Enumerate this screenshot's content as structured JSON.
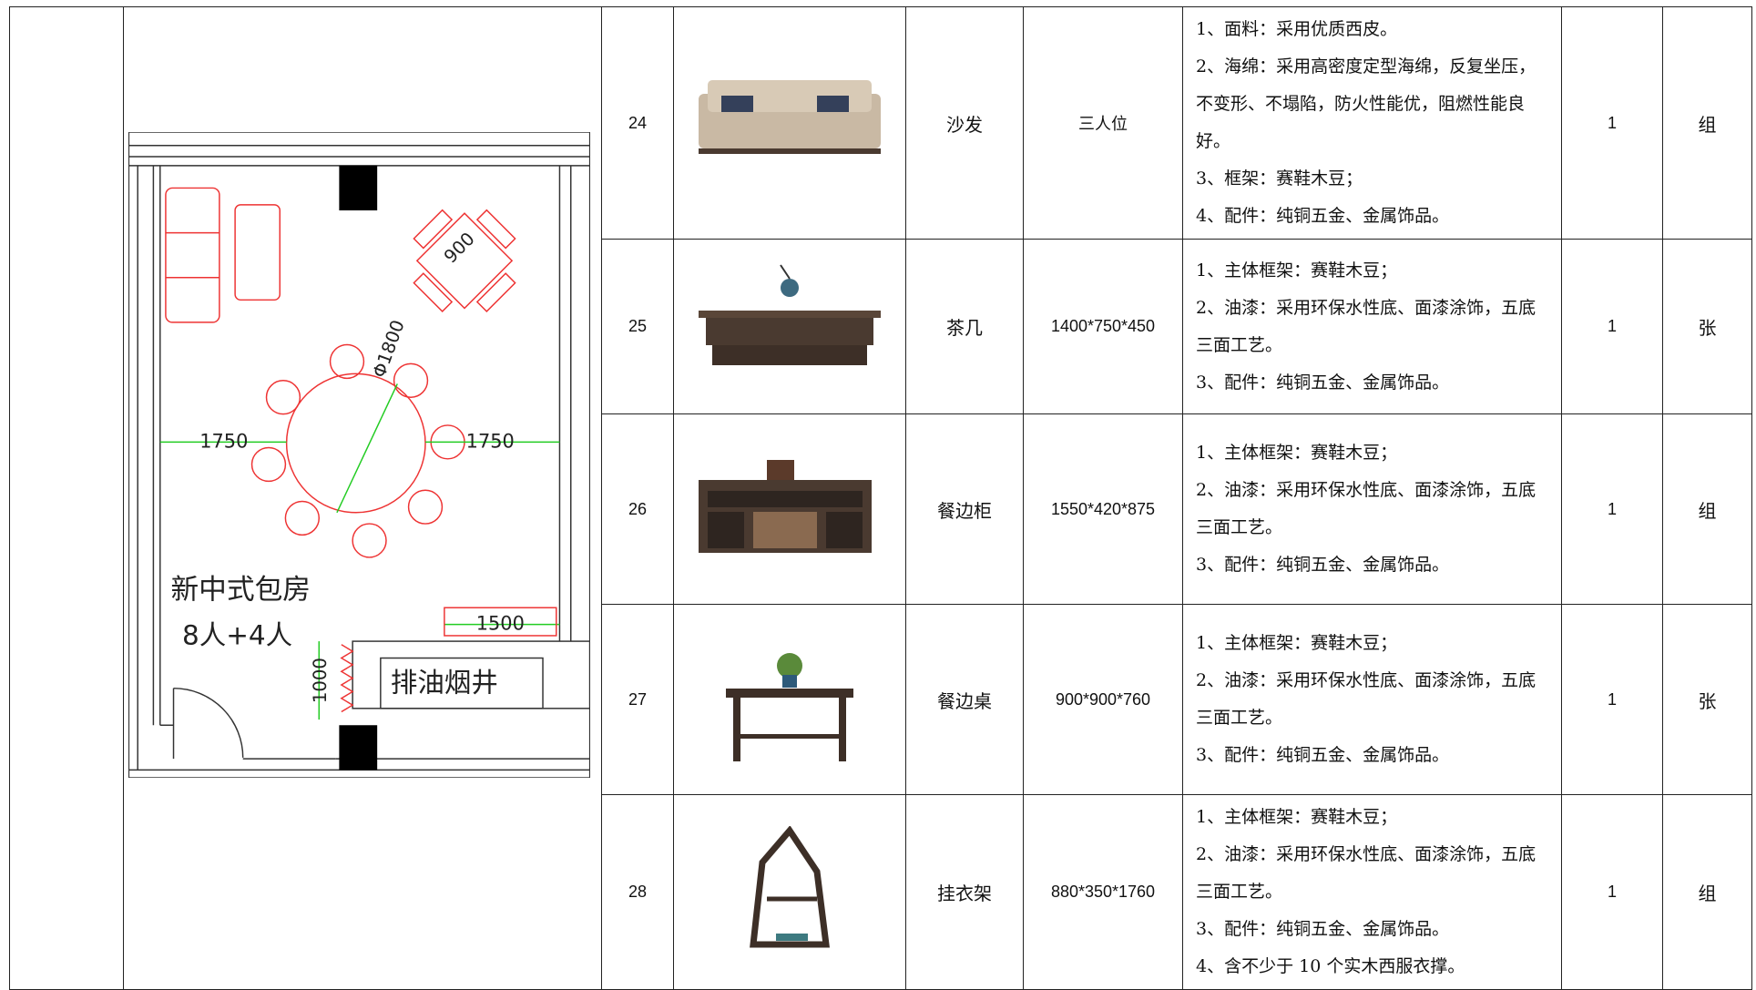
{
  "plan": {
    "dim_left": "1750",
    "dim_right": "1750",
    "dim_bottom": "1500",
    "dim_side": "1000",
    "dim_square": "900",
    "dim_round": "Φ1800",
    "room_name": "新中式包房",
    "room_capacity": "8人+4人",
    "shaft": "排油烟井"
  },
  "table": {
    "rows": [
      {
        "no": "24",
        "name": "沙发",
        "spec": "三人位",
        "desc": [
          "1、面料：采用优质西皮。",
          "2、海绵：采用高密度定型海绵，反复坐压，不变形、不塌陷，防火性能优，阻燃性能良好。",
          "3、框架：赛鞋木豆；",
          "4、配件：纯铜五金、金属饰品。"
        ],
        "qty": "1",
        "unit": "组"
      },
      {
        "no": "25",
        "name": "茶几",
        "spec": "1400*750*450",
        "desc": [
          "1、主体框架：赛鞋木豆；",
          "2、油漆：采用环保水性底、面漆涂饰，五底三面工艺。",
          "3、配件：纯铜五金、金属饰品。"
        ],
        "qty": "1",
        "unit": "张"
      },
      {
        "no": "26",
        "name": "餐边柜",
        "spec": "1550*420*875",
        "desc": [
          "1、主体框架：赛鞋木豆；",
          "2、油漆：采用环保水性底、面漆涂饰，五底三面工艺。",
          "3、配件：纯铜五金、金属饰品。"
        ],
        "qty": "1",
        "unit": "组"
      },
      {
        "no": "27",
        "name": "餐边桌",
        "spec": "900*900*760",
        "desc": [
          "1、主体框架：赛鞋木豆；",
          "2、油漆：采用环保水性底、面漆涂饰，五底三面工艺。",
          "3、配件：纯铜五金、金属饰品。"
        ],
        "qty": "1",
        "unit": "张"
      },
      {
        "no": "28",
        "name": "挂衣架",
        "spec": "880*350*1760",
        "desc": [
          "1、主体框架：赛鞋木豆；",
          "2、油漆：采用环保水性底、面漆涂饰，五底三面工艺。",
          "3、配件：纯铜五金、金属饰品。",
          "4、含不少于 10 个实木西服衣撑。"
        ],
        "qty": "1",
        "unit": "组"
      }
    ]
  }
}
